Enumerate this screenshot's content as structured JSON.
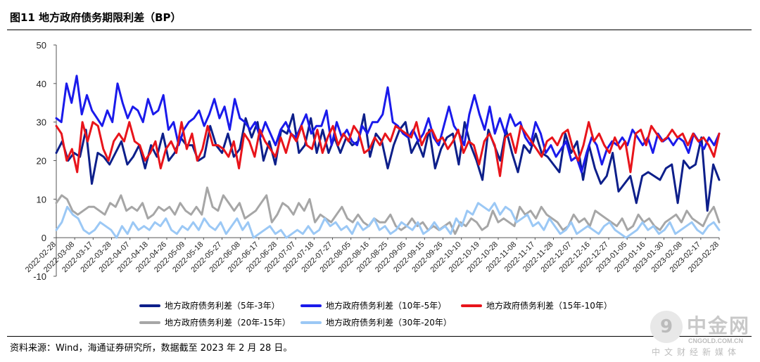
{
  "title": "图11 地方政府债务期限利差（BP）",
  "source": "资料来源：Wind，海通证券研究所，数据截至 2023 年 2 月 28 日。",
  "watermark": {
    "logo_glyph": "9",
    "name": "中金网",
    "url": "CNGOLD.COM.CN",
    "caption": "中文财经新媒体"
  },
  "chart_data": {
    "type": "line",
    "title": "图11 地方政府债务期限利差（BP）",
    "ylim": [
      -10,
      50
    ],
    "yticks": [
      -10,
      0,
      10,
      20,
      30,
      40,
      50
    ],
    "x_start": "2022-02-28",
    "x_end": "2023-02-28",
    "x_ticks": [
      "2022-02-28",
      "2022-03-08",
      "2022-03-17",
      "2022-03-28",
      "2022-04-07",
      "2022-04-18",
      "2022-04-26",
      "2022-05-09",
      "2022-05-18",
      "2022-05-27",
      "2022-06-08",
      "2022-06-17",
      "2022-06-28",
      "2022-07-07",
      "2022-07-18",
      "2022-07-27",
      "2022-08-05",
      "2022-08-16",
      "2022-08-25",
      "2022-09-05",
      "2022-09-15",
      "2022-09-26",
      "2022-10-10",
      "2022-10-19",
      "2022-10-28",
      "2022-11-08",
      "2022-11-17",
      "2022-11-28",
      "2022-12-07",
      "2022-12-16",
      "2022-12-27",
      "2023-01-05",
      "2023-01-16",
      "2023-01-30",
      "2023-02-08",
      "2023-02-17",
      "2023-02-28"
    ],
    "grid": false,
    "legend_position": "bottom",
    "series": [
      {
        "name": "地方政府债务利差（5年-3年）",
        "color": "#0d1f8a",
        "values": [
          22,
          25,
          20,
          22,
          21,
          28,
          14,
          22,
          21,
          19,
          22,
          25,
          19,
          21,
          24,
          18,
          24,
          21,
          27,
          20,
          22,
          26,
          24,
          24,
          20,
          21,
          29,
          24,
          22,
          27,
          21,
          23,
          31,
          26,
          30,
          20,
          25,
          19,
          28,
          27,
          32,
          22,
          24,
          31,
          22,
          28,
          22,
          26,
          22,
          26,
          24,
          25,
          32,
          21,
          27,
          25,
          18,
          24,
          28,
          30,
          22,
          25,
          21,
          28,
          18,
          23,
          26,
          27,
          19,
          30,
          24,
          20,
          15,
          28,
          24,
          20,
          28,
          22,
          17,
          24,
          22,
          27,
          22,
          21,
          19,
          17,
          27,
          22,
          25,
          15,
          24,
          18,
          14,
          16,
          22,
          12,
          14,
          16,
          9,
          16,
          17,
          16,
          15,
          18,
          19,
          9,
          20,
          18,
          19,
          26,
          7,
          19,
          15
        ]
      },
      {
        "name": "地方政府债务利差（10年-5年）",
        "color": "#1a1aeb",
        "values": [
          31,
          30,
          40,
          35,
          42,
          32,
          37,
          33,
          31,
          29,
          33,
          30,
          40,
          35,
          31,
          34,
          33,
          30,
          36,
          32,
          33,
          37,
          28,
          30,
          24,
          28,
          30,
          31,
          33,
          29,
          32,
          36,
          31,
          34,
          28,
          36,
          31,
          30,
          28,
          30,
          26,
          30,
          27,
          24,
          28,
          30,
          27,
          26,
          29,
          32,
          27,
          29,
          29,
          33,
          24,
          30,
          26,
          28,
          25,
          24,
          29,
          27,
          30,
          30,
          32,
          39,
          30,
          29,
          27,
          26,
          28,
          25,
          27,
          31,
          26,
          24,
          29,
          34,
          29,
          27,
          24,
          32,
          37,
          32,
          28,
          34,
          27,
          31,
          27,
          32,
          29,
          30,
          26,
          24,
          30,
          27,
          22,
          24,
          21,
          23,
          25,
          20,
          21,
          17,
          22,
          26,
          24,
          19,
          23,
          25,
          24,
          26,
          24,
          28,
          26,
          24,
          26,
          22,
          27,
          25,
          26,
          24,
          26,
          25,
          22,
          27,
          25,
          23,
          26,
          24,
          27
        ]
      },
      {
        "name": "地方政府债务利差（15年-10年）",
        "color": "#e8141b",
        "values": [
          29,
          27,
          20,
          23,
          17,
          30,
          25,
          30,
          29,
          23,
          20,
          25,
          27,
          25,
          30,
          25,
          24,
          20,
          22,
          25,
          18,
          23,
          25,
          22,
          30,
          23,
          27,
          20,
          23,
          29,
          24,
          24,
          23,
          21,
          25,
          18,
          27,
          25,
          21,
          28,
          25,
          23,
          21,
          26,
          22,
          27,
          25,
          29,
          24,
          23,
          28,
          22,
          26,
          29,
          24,
          27,
          25,
          29,
          27,
          22,
          23,
          26,
          24,
          27,
          25,
          29,
          28,
          27,
          26,
          30,
          24,
          27,
          28,
          25,
          26,
          23,
          25,
          28,
          22,
          25,
          24,
          19,
          25,
          27,
          24,
          16,
          26,
          27,
          22,
          29,
          27,
          25,
          23,
          21,
          25,
          26,
          24,
          27,
          28,
          23,
          20,
          24,
          30,
          25,
          27,
          24,
          22,
          26,
          23,
          25,
          17,
          27,
          28,
          24,
          29,
          27,
          25,
          26,
          28,
          26,
          27,
          24,
          27,
          25,
          26,
          24,
          21,
          27
        ]
      },
      {
        "name": "地方政府债务利差（20年-15年）",
        "color": "#a6a6a6",
        "values": [
          9,
          11,
          10,
          7,
          6,
          7,
          8,
          8,
          7,
          6,
          9,
          8,
          11,
          7,
          8,
          7,
          9,
          5,
          6,
          8,
          7,
          8,
          6,
          9,
          7,
          6,
          8,
          6,
          13,
          8,
          7,
          11,
          9,
          7,
          9,
          5,
          6,
          7,
          9,
          11,
          4,
          6,
          9,
          8,
          6,
          9,
          7,
          10,
          4,
          6,
          5,
          4,
          6,
          8,
          5,
          4,
          6,
          4,
          3,
          5,
          4,
          4,
          6,
          3,
          2,
          3,
          5,
          3,
          4,
          2,
          3,
          2,
          3,
          4,
          1,
          4,
          3,
          5,
          4,
          2,
          3,
          7,
          4,
          5,
          4,
          3,
          8,
          6,
          7,
          5,
          8,
          6,
          5,
          4,
          2,
          3,
          6,
          4,
          5,
          3,
          7,
          6,
          5,
          4,
          3,
          5,
          2,
          3,
          6,
          4,
          5,
          3,
          2,
          4,
          5,
          6,
          4,
          7,
          5,
          4,
          3,
          6,
          8,
          4
        ]
      },
      {
        "name": "地方政府债务利差（30年-20年）",
        "color": "#9bc8f5",
        "values": [
          2,
          4,
          8,
          6,
          5,
          2,
          1,
          2,
          4,
          3,
          2,
          0,
          3,
          1,
          4,
          2,
          3,
          2,
          4,
          3,
          5,
          2,
          1,
          3,
          2,
          4,
          2,
          5,
          3,
          2,
          4,
          1,
          3,
          5,
          2,
          4,
          0,
          1,
          2,
          3,
          1,
          2,
          0,
          1,
          2,
          1,
          3,
          1,
          2,
          5,
          3,
          4,
          2,
          3,
          1,
          4,
          2,
          3,
          5,
          2,
          3,
          1,
          2,
          4,
          3,
          2,
          4,
          1,
          2,
          4,
          2,
          3,
          1,
          5,
          3,
          7,
          6,
          9,
          8,
          7,
          9,
          6,
          8,
          7,
          4,
          5,
          6,
          3,
          4,
          2,
          5,
          3,
          1,
          2,
          4,
          1,
          2,
          3,
          2,
          1,
          3,
          4,
          2,
          1,
          0,
          1,
          2,
          4,
          2,
          3,
          1,
          2,
          4,
          1,
          2,
          3,
          4,
          2,
          1,
          3,
          4,
          2
        ]
      }
    ]
  }
}
